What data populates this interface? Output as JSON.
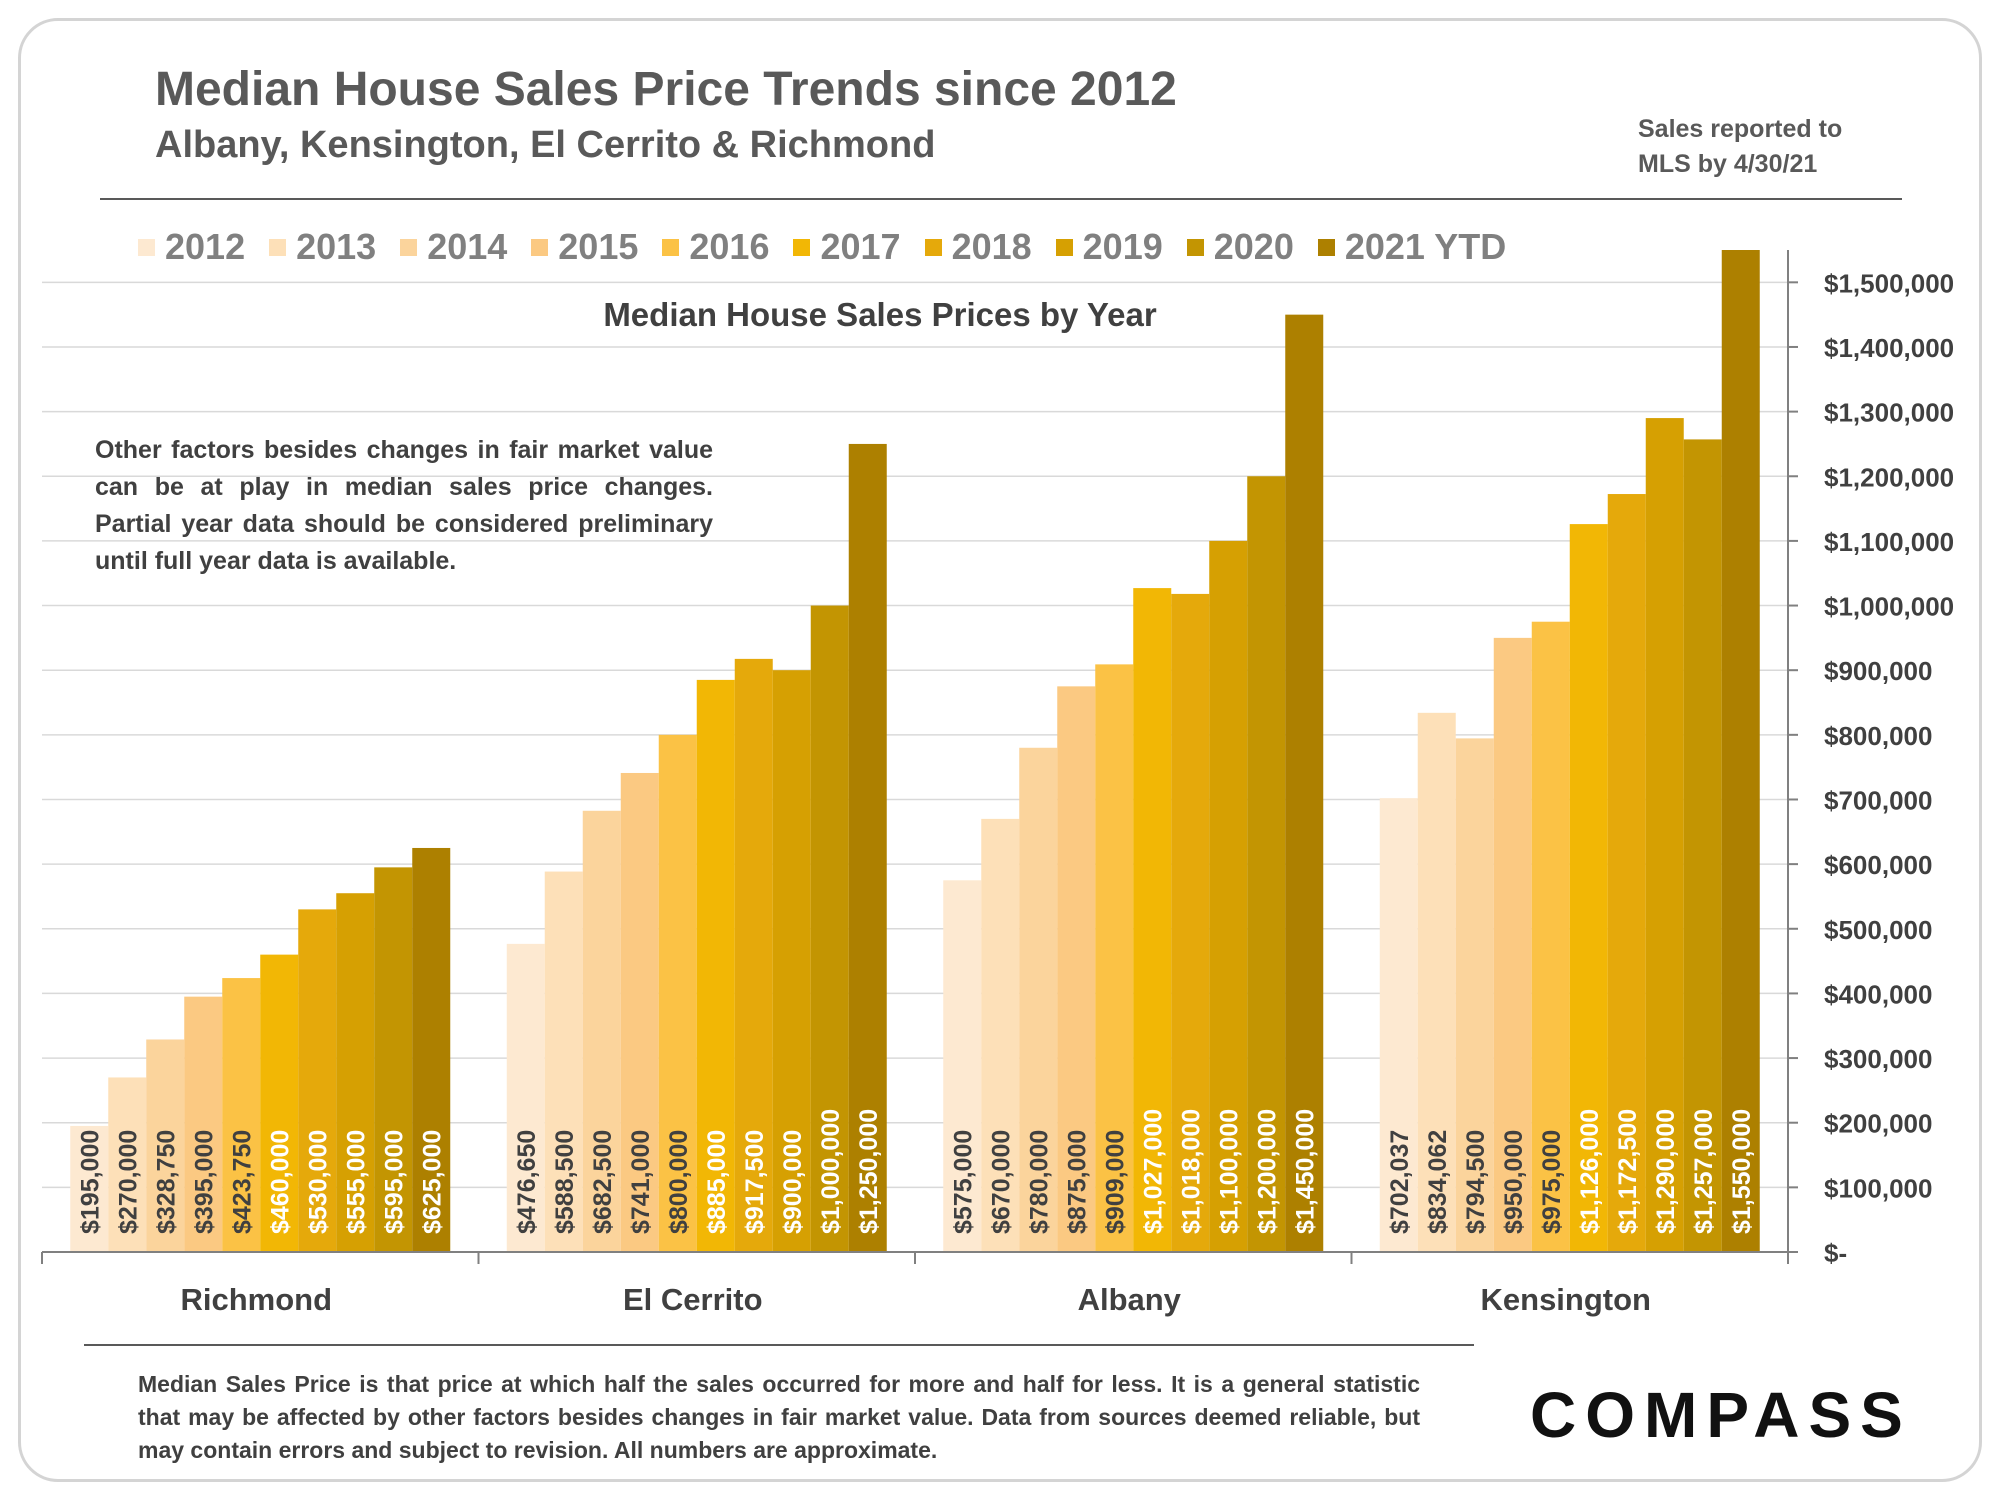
{
  "header": {
    "title": "Median House Sales Price Trends since 2012",
    "subtitle": "Albany, Kensington, El Cerrito & Richmond",
    "note_line1": "Sales reported to",
    "note_line2": "MLS by 4/30/21"
  },
  "caveat": "Other factors besides changes in fair market value can be at play in median sales price changes. Partial year data should be considered preliminary until full year data is available.",
  "footer": {
    "text": "Median Sales Price is that price at which half the sales occurred for more and half for less. It is a general statistic that may be affected by other factors besides changes in fair market value. Data from sources deemed reliable, but may contain errors and subject to revision.  All numbers are approximate.",
    "logo": "COMPASS"
  },
  "chart_data": {
    "type": "bar",
    "title": "Median House Sales Prices by Year",
    "categories": [
      "Richmond",
      "El Cerrito",
      "Albany",
      "Kensington"
    ],
    "series": [
      {
        "name": "2012",
        "color": "#fde9d1",
        "values": [
          195000,
          476650,
          575000,
          702037
        ]
      },
      {
        "name": "2013",
        "color": "#fde0b8",
        "values": [
          270000,
          588500,
          670000,
          834062
        ]
      },
      {
        "name": "2014",
        "color": "#fbd49c",
        "values": [
          328750,
          682500,
          780000,
          794500
        ]
      },
      {
        "name": "2015",
        "color": "#fbc982",
        "values": [
          395000,
          741000,
          875000,
          950000
        ]
      },
      {
        "name": "2016",
        "color": "#fbc245",
        "values": [
          423750,
          800000,
          909000,
          975000
        ]
      },
      {
        "name": "2017",
        "color": "#f2b705",
        "values": [
          460000,
          885000,
          1027000,
          1126000
        ]
      },
      {
        "name": "2018",
        "color": "#e5a90b",
        "values": [
          530000,
          917500,
          1018000,
          1172500
        ]
      },
      {
        "name": "2019",
        "color": "#d6a002",
        "values": [
          555000,
          900000,
          1100000,
          1290000
        ]
      },
      {
        "name": "2020",
        "color": "#c39502",
        "values": [
          595000,
          1000000,
          1200000,
          1257000
        ]
      },
      {
        "name": "2021 YTD",
        "color": "#ad8000",
        "values": [
          625000,
          1250000,
          1450000,
          1550000
        ]
      }
    ],
    "value_labels": [
      [
        "$195,000",
        "$270,000",
        "$328,750",
        "$395,000",
        "$423,750",
        "$460,000",
        "$530,000",
        "$555,000",
        "$595,000",
        "$625,000"
      ],
      [
        "$476,650",
        "$588,500",
        "$682,500",
        "$741,000",
        "$800,000",
        "$885,000",
        "$917,500",
        "$900,000",
        "$1,000,000",
        "$1,250,000"
      ],
      [
        "$575,000",
        "$670,000",
        "$780,000",
        "$875,000",
        "$909,000",
        "$1,027,000",
        "$1,018,000",
        "$1,100,000",
        "$1,200,000",
        "$1,450,000"
      ],
      [
        "$702,037",
        "$834,062",
        "$794,500",
        "$950,000",
        "$975,000",
        "$1,126,000",
        "$1,172,500",
        "$1,290,000",
        "$1,257,000",
        "$1,550,000"
      ]
    ],
    "y_ticks": [
      0,
      100000,
      200000,
      300000,
      400000,
      500000,
      600000,
      700000,
      800000,
      900000,
      1000000,
      1100000,
      1200000,
      1300000,
      1400000,
      1500000
    ],
    "y_tick_labels": [
      "$-",
      "$100,000",
      "$200,000",
      "$300,000",
      "$400,000",
      "$500,000",
      "$600,000",
      "$700,000",
      "$800,000",
      "$900,000",
      "$1,000,000",
      "$1,100,000",
      "$1,200,000",
      "$1,300,000",
      "$1,400,000",
      "$1,500,000"
    ],
    "ylim": [
      0,
      1550000
    ],
    "y_axis_side": "right",
    "grid": true,
    "legend_position": "top"
  }
}
